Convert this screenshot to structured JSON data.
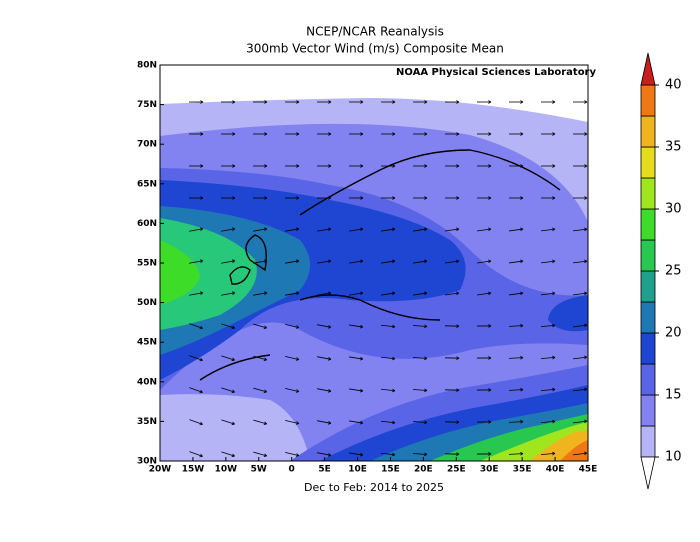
{
  "chart_data": {
    "type": "map",
    "title": "NCEP/NCAR Reanalysis",
    "subtitle": "300mb Vector Wind (m/s) Composite Mean",
    "credit": "NOAA Physical Sciences Laboratory",
    "x_label": "Dec to Feb: 2014 to 2025",
    "xlim": [
      -20,
      45
    ],
    "ylim": [
      30,
      80
    ],
    "xticks": [
      {
        "value": -20,
        "label": "20W"
      },
      {
        "value": -15,
        "label": "15W"
      },
      {
        "value": -10,
        "label": "10W"
      },
      {
        "value": -5,
        "label": "5W"
      },
      0,
      {
        "value": 5,
        "label": "5E"
      },
      {
        "value": 10,
        "label": "10E"
      },
      {
        "value": 15,
        "label": "15E"
      },
      {
        "value": 20,
        "label": "20E"
      },
      {
        "value": 25,
        "label": "25E"
      },
      {
        "value": 30,
        "label": "30E"
      },
      {
        "value": 35,
        "label": "35E"
      },
      {
        "value": 40,
        "label": "40E"
      },
      {
        "value": 45,
        "label": "45E"
      }
    ],
    "yticks": [
      {
        "value": 30,
        "label": "30N"
      },
      {
        "value": 35,
        "label": "35N"
      },
      {
        "value": 40,
        "label": "40N"
      },
      {
        "value": 45,
        "label": "45N"
      },
      {
        "value": 50,
        "label": "50N"
      },
      {
        "value": 55,
        "label": "55N"
      },
      {
        "value": 60,
        "label": "60N"
      },
      {
        "value": 65,
        "label": "65N"
      },
      {
        "value": 70,
        "label": "70N"
      },
      {
        "value": 75,
        "label": "75N"
      },
      {
        "value": 80,
        "label": "80N"
      }
    ],
    "colorbar": {
      "levels": [
        10,
        12.5,
        15,
        17.5,
        20,
        22.5,
        25,
        27.5,
        30,
        32.5,
        35,
        37.5,
        40
      ],
      "colors": [
        "#b4b4f6",
        "#8282f0",
        "#5a64e6",
        "#1e46d2",
        "#1e78b4",
        "#1ea08c",
        "#28c850",
        "#3cdc28",
        "#a0e61e",
        "#e6dc1e",
        "#f0b41e",
        "#f07814"
      ],
      "over_color": "#c81e1e",
      "under_color": "#ffffff",
      "ticks": [
        10,
        15,
        20,
        25,
        30,
        35,
        40
      ]
    }
  }
}
